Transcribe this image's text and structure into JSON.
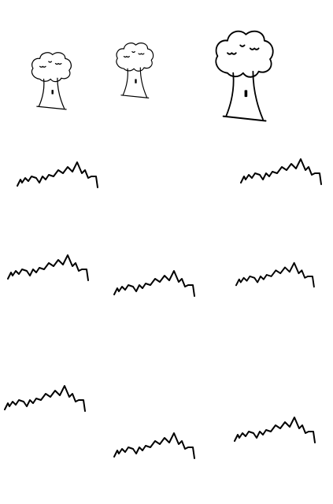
{
  "scene": {
    "ink_color": "#000000",
    "background_color": "#ffffff",
    "trees": [
      {
        "icon": "tree-icon"
      },
      {
        "icon": "tree-icon"
      },
      {
        "icon": "tree-icon"
      }
    ],
    "grass_tufts": [
      {
        "icon": "grass-icon"
      },
      {
        "icon": "grass-icon"
      },
      {
        "icon": "grass-icon"
      },
      {
        "icon": "grass-icon"
      },
      {
        "icon": "grass-icon"
      },
      {
        "icon": "grass-icon"
      },
      {
        "icon": "grass-icon"
      },
      {
        "icon": "grass-icon"
      }
    ]
  }
}
